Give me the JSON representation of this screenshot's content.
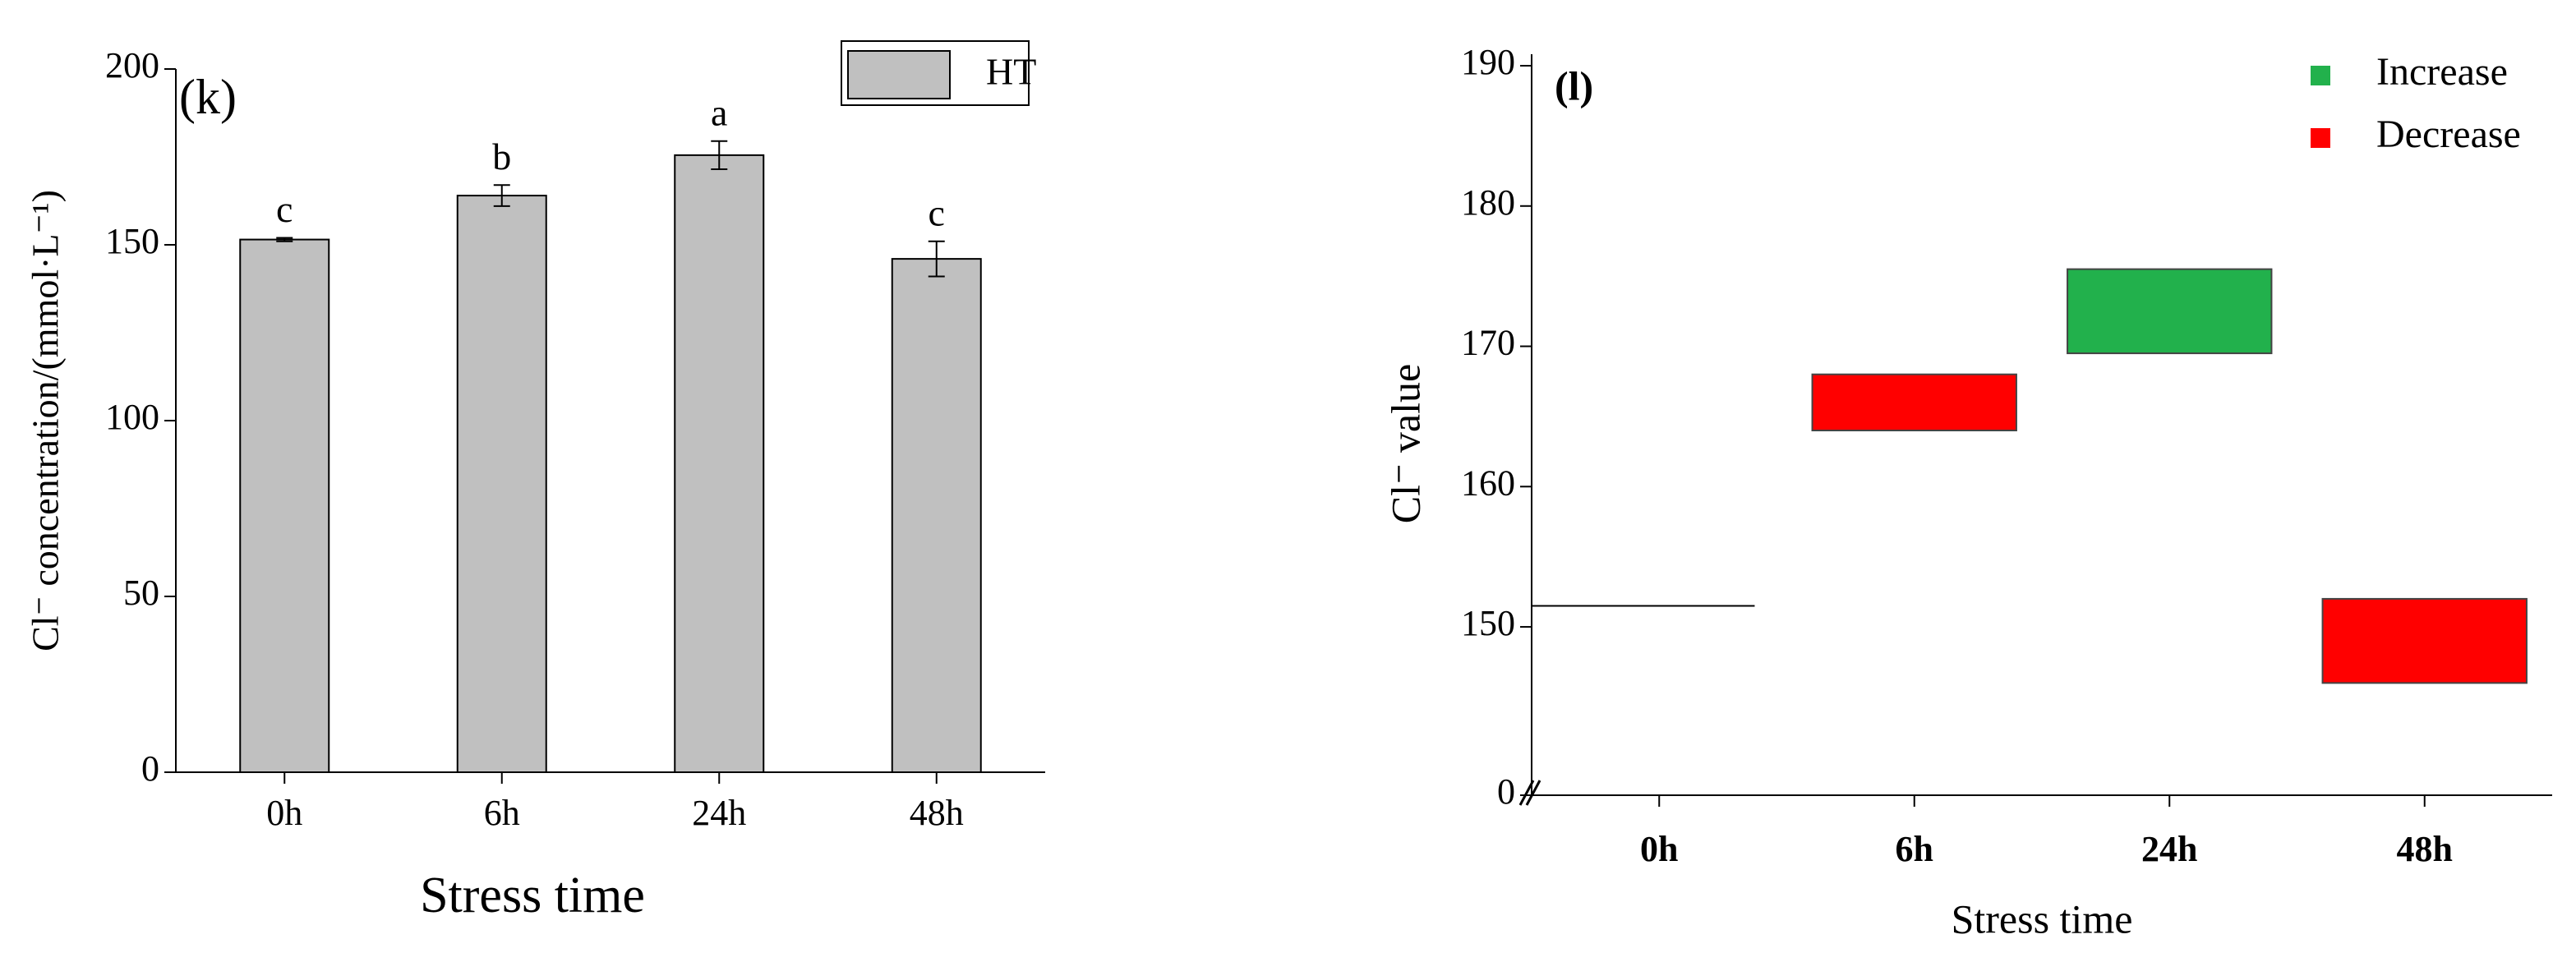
{
  "chart_data": [
    {
      "type": "bar",
      "title": "(k)",
      "x_label": "Stress time",
      "y_label": "Cl⁻ concentration/(mmol·L⁻¹)",
      "categories": [
        "0h",
        "6h",
        "24h",
        "48h"
      ],
      "series": [
        {
          "name": "HT",
          "color": "#c0c0c0",
          "values": [
            151.5,
            164,
            175.5,
            146
          ],
          "errors": [
            0.5,
            3,
            4,
            5
          ],
          "letters": [
            "c",
            "b",
            "a",
            "c"
          ]
        }
      ],
      "ylim": [
        0,
        200
      ],
      "yticks": [
        0,
        50,
        100,
        150,
        200
      ]
    },
    {
      "type": "waterfall",
      "title": "(l)",
      "x_label": "Stress time",
      "y_label": "Cl⁻ value",
      "categories": [
        "0h",
        "6h",
        "24h",
        "48h"
      ],
      "start_value": 151.5,
      "series": [
        {
          "name": "Increase",
          "color": "#22b14c",
          "low": [
            null,
            null,
            169.5,
            null
          ],
          "high": [
            null,
            null,
            175.5,
            null
          ]
        },
        {
          "name": "Decrease",
          "color": "#ff0000",
          "low": [
            null,
            164,
            null,
            146
          ],
          "high": [
            null,
            168,
            null,
            152
          ]
        }
      ],
      "ylim": [
        138,
        190
      ],
      "yticks": [
        0,
        150,
        160,
        170,
        180,
        190
      ],
      "axis_break": true
    }
  ]
}
